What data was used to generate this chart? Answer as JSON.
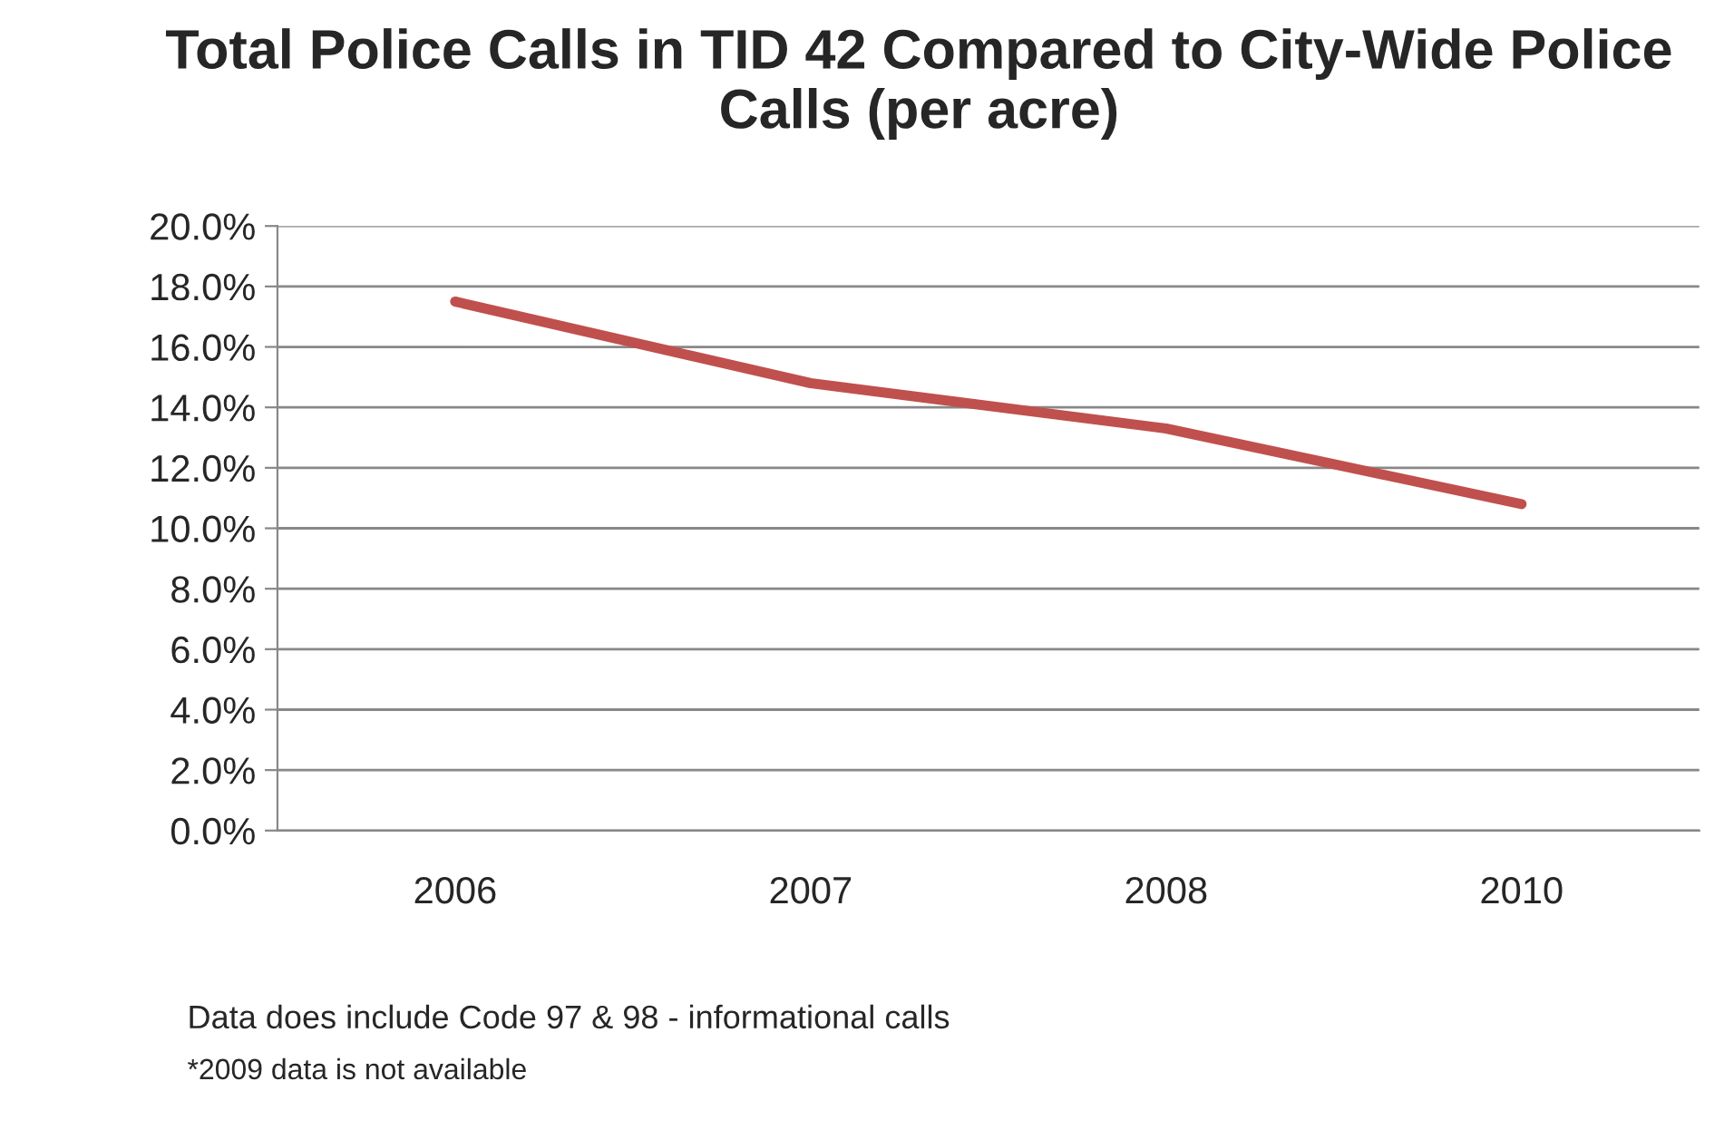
{
  "chart_data": {
    "type": "line",
    "title": "Total Police Calls in TID 42 Compared to City-Wide Police Calls (per acre)",
    "categories": [
      "2006",
      "2007",
      "2008",
      "2010"
    ],
    "series": [
      {
        "color": "#c0504d",
        "values": [
          17.5,
          14.8,
          13.3,
          10.8
        ]
      }
    ],
    "ylim": [
      0,
      20
    ],
    "yticks": [
      {
        "value": 0,
        "label": "0.0%"
      },
      {
        "value": 2,
        "label": "2.0%"
      },
      {
        "value": 4,
        "label": "4.0%"
      },
      {
        "value": 6,
        "label": "6.0%"
      },
      {
        "value": 8,
        "label": "8.0%"
      },
      {
        "value": 10,
        "label": "10.0%"
      },
      {
        "value": 12,
        "label": "12.0%"
      },
      {
        "value": 14,
        "label": "14.0%"
      },
      {
        "value": 16,
        "label": "16.0%"
      },
      {
        "value": 18,
        "label": "18.0%"
      },
      {
        "value": 20,
        "label": "20.0%"
      }
    ],
    "grid": "y",
    "marker": "none",
    "line_style": "solid",
    "annotations": [
      "Data does include Code 97 & 98 - informational calls",
      "*2009 data is not available"
    ]
  }
}
